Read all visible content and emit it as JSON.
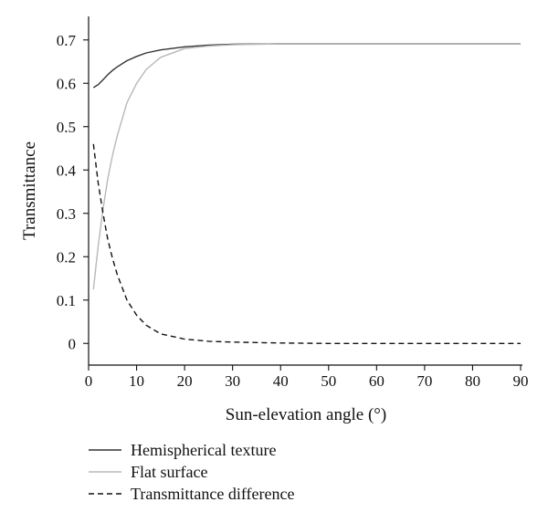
{
  "chart_data": {
    "type": "line",
    "xlabel": "Sun-elevation angle (°)",
    "ylabel": "Transmittance",
    "xlim": [
      0,
      90
    ],
    "ylim": [
      -0.05,
      0.75
    ],
    "x_ticks": [
      0,
      10,
      20,
      30,
      40,
      50,
      60,
      70,
      80,
      90
    ],
    "y_ticks": [
      0,
      0.1,
      0.2,
      0.3,
      0.4,
      0.5,
      0.6,
      0.7
    ],
    "x_tick_labels": [
      "0",
      "10",
      "20",
      "30",
      "40",
      "50",
      "60",
      "70",
      "80",
      "90"
    ],
    "y_tick_labels": [
      "0",
      "0.1",
      "0.2",
      "0.3",
      "0.4",
      "0.5",
      "0.6",
      "0.7"
    ],
    "grid": false,
    "legend_position": "bottom",
    "series": [
      {
        "name": "Hemispherical texture",
        "color": "#333333",
        "dash": "solid",
        "x": [
          1,
          2,
          3,
          4,
          5,
          6,
          8,
          10,
          12,
          15,
          20,
          25,
          30,
          40,
          50,
          60,
          70,
          80,
          90
        ],
        "y": [
          0.59,
          0.597,
          0.608,
          0.62,
          0.63,
          0.638,
          0.652,
          0.662,
          0.67,
          0.677,
          0.684,
          0.688,
          0.69,
          0.691,
          0.691,
          0.691,
          0.691,
          0.691,
          0.691
        ]
      },
      {
        "name": "Flat surface",
        "color": "#b8b8b8",
        "dash": "solid",
        "x": [
          1,
          2,
          3,
          4,
          5,
          6,
          8,
          10,
          12,
          15,
          20,
          25,
          30,
          40,
          50,
          60,
          70,
          80,
          90
        ],
        "y": [
          0.125,
          0.225,
          0.31,
          0.38,
          0.435,
          0.48,
          0.555,
          0.6,
          0.632,
          0.66,
          0.68,
          0.686,
          0.689,
          0.691,
          0.691,
          0.691,
          0.691,
          0.691,
          0.691
        ]
      },
      {
        "name": "Transmittance difference",
        "color": "#111111",
        "dash": "dashed",
        "x": [
          1,
          2,
          3,
          4,
          5,
          6,
          8,
          10,
          12,
          15,
          20,
          25,
          30,
          40,
          50,
          60,
          70,
          80,
          90
        ],
        "y": [
          0.46,
          0.37,
          0.3,
          0.24,
          0.195,
          0.158,
          0.1,
          0.065,
          0.042,
          0.022,
          0.01,
          0.005,
          0.003,
          0.001,
          0,
          0,
          0,
          0,
          0
        ]
      }
    ]
  }
}
